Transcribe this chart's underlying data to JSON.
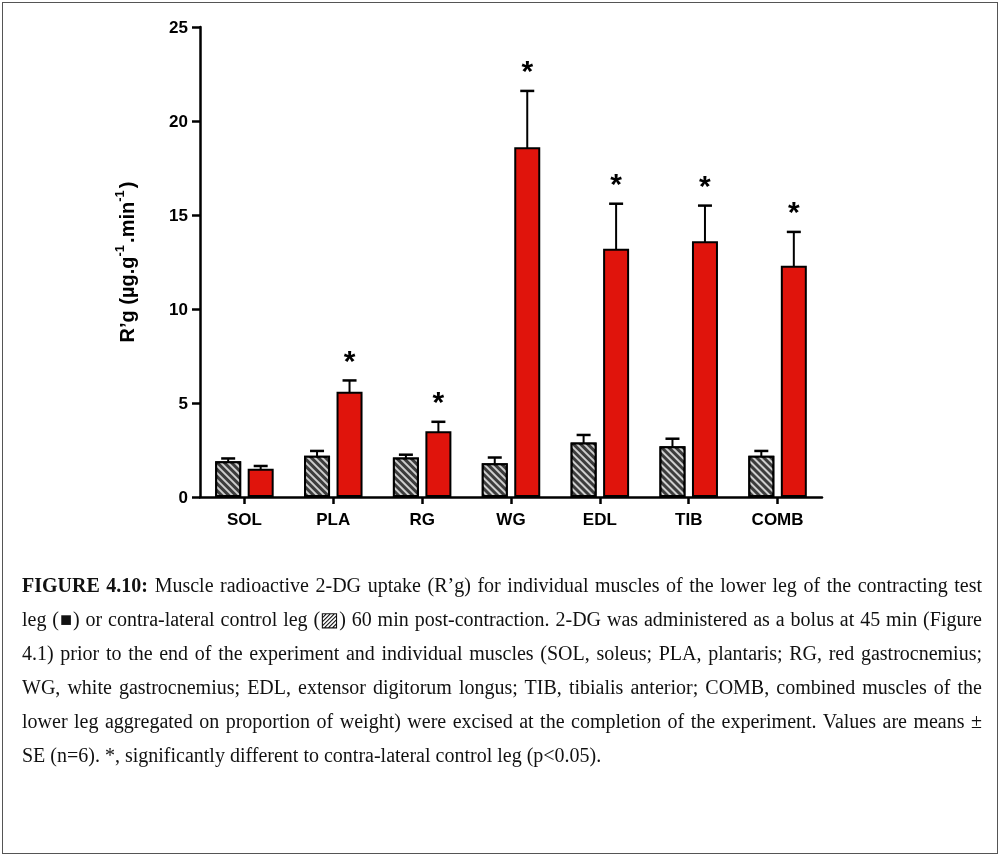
{
  "chart_data": {
    "type": "bar",
    "title": "FIGURE 4.10:",
    "ylabel": "R’g (µg.g$^{-1}$.min$^{-1}$)",
    "categories": [
      "SOL",
      "PLA",
      "RG",
      "WG",
      "EDL",
      "TIB",
      "COMB"
    ],
    "series": [
      {
        "color": "#3c3c3c",
        "values": [
          1.9,
          2.2,
          2.1,
          1.8,
          2.9,
          2.7,
          2.2
        ],
        "errors": [
          0.15,
          0.25,
          0.15,
          0.3,
          0.4,
          0.4,
          0.25
        ]
      },
      {
        "color": "#e0140c",
        "values": [
          1.5,
          5.6,
          3.5,
          18.6,
          13.2,
          13.6,
          12.3
        ],
        "errors": [
          0.15,
          0.6,
          0.5,
          3.0,
          2.4,
          1.9,
          1.8
        ]
      }
    ],
    "ylim": [
      0,
      25
    ],
    "yticks": [
      0,
      5,
      10,
      15,
      20,
      25
    ],
    "grid": false,
    "annotations": [
      {
        "text": "*",
        "x": "PLA",
        "y": 5.6
      },
      {
        "text": "*",
        "x": "RG",
        "y": 3.5
      },
      {
        "text": "*",
        "x": "WG",
        "y": 18.6
      },
      {
        "text": "*",
        "x": "EDL",
        "y": 13.2
      },
      {
        "text": "*",
        "x": "TIB",
        "y": 13.6
      },
      {
        "text": "*",
        "x": "COMB",
        "y": 12.3
      },
      "Muscle radioactive 2-DG uptake (R’g) for individual muscles of the lower leg of the contracting test leg (■) or contra-lateral control leg (▨) 60 min post-contraction.  2-DG was administered as a bolus at 45 min (Figure 4.1) prior to the end of the experiment and individual muscles (SOL, soleus; PLA, plantaris; RG, red gastrocnemius; WG, white gastrocnemius; EDL, extensor digitorum longus; TIB, tibialis anterior; COMB, combined muscles of the lower leg aggregated on proportion of weight) were excised at the completion of the experiment.  Values are means ± SE (n=6).  *, significantly different to contra-lateral control leg (p<0.05)."
    ]
  }
}
